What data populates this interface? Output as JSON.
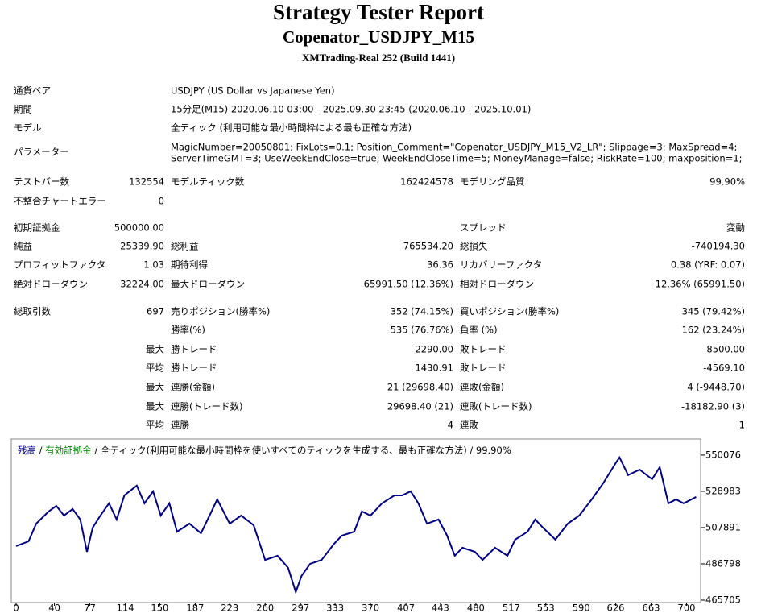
{
  "header": {
    "title": "Strategy Tester Report",
    "subtitle": "Copenator_USDJPY_M15",
    "build": "XMTrading-Real 252 (Build 1441)"
  },
  "info": [
    {
      "label": "通貨ペア",
      "value": [
        "USDJPY (US Dollar vs Japanese Yen)"
      ]
    },
    {
      "label": "期間",
      "value": [
        "15分足(M15) 2020.06.10 03:00 - 2025.09.30 23:45 (2020.06.10 - 2025.10.01)"
      ]
    },
    {
      "label": "モデル",
      "value": [
        "全ティック (利用可能な最小時間枠による最も正確な方法)"
      ]
    },
    {
      "label": "パラメーター",
      "value": [
        "MagicNumber=20050801; FixLots=0.1; Position_Comment=\"Copenator_USDJPY_M15_V2_LR\"; Slippage=3; MaxSpread=4;",
        "ServerTimeGMT=3; UseWeekEndClose=true; WeekEndCloseTime=5; MoneyManage=false; RiskRate=100; maxposition=1;"
      ]
    }
  ],
  "stats": [
    [
      "テストバー数",
      "132554",
      "モデルティック数",
      "162424578",
      "モデリング品質",
      "99.90%"
    ],
    [
      "不整合チャートエラー",
      "0",
      null,
      null,
      null,
      null
    ],
    [
      "初期証拠金",
      "500000.00",
      null,
      null,
      "スプレッド",
      "変動"
    ],
    [
      "純益",
      "25339.90",
      "総利益",
      "765534.20",
      "総損失",
      "-740194.30"
    ],
    [
      "プロフィットファクタ",
      "1.03",
      "期待利得",
      "36.36",
      "リカバリーファクタ",
      "0.38 (YRF: 0.07)"
    ],
    [
      "絶対ドローダウン",
      "32224.00",
      "最大ドローダウン",
      "65991.50 (12.36%)",
      "相対ドローダウン",
      "12.36% (65991.50)"
    ],
    [
      "総取引数",
      "697",
      "売りポジション(勝率%)",
      "352 (74.15%)",
      "買いポジション(勝率%)",
      "345 (79.42%)"
    ],
    [
      null,
      null,
      "勝率(%)",
      "535 (76.76%)",
      "負率 (%)",
      "162 (23.24%)"
    ],
    [
      null,
      "最大",
      "勝トレード",
      "2290.00",
      "敗トレード",
      "-8500.00"
    ],
    [
      null,
      "平均",
      "勝トレード",
      "1430.91",
      "敗トレード",
      "-4569.10"
    ],
    [
      null,
      "最大",
      "連勝(金額)",
      "21 (29698.40)",
      "連敗(金額)",
      "4 (-9448.70)"
    ],
    [
      null,
      "最大",
      "連勝(トレード数)",
      "29698.40 (21)",
      "連敗(トレード数)",
      "-18182.90 (3)"
    ],
    [
      null,
      "平均",
      "連勝",
      "4",
      "連敗",
      "1"
    ]
  ],
  "chart_data": {
    "type": "line",
    "legend_separator": "/",
    "legend_note": "全ティック(利用可能な最小時間枠を使いすべてのティックを生成する、最も正確な方法)",
    "legend_quality": "99.90%",
    "x": [
      0,
      13,
      21,
      34,
      42,
      50,
      59,
      67,
      74,
      80,
      88,
      97,
      105,
      113,
      126,
      134,
      143,
      151,
      160,
      168,
      181,
      193,
      202,
      210,
      223,
      235,
      248,
      260,
      273,
      284,
      292,
      298,
      307,
      319,
      332,
      340,
      353,
      361,
      370,
      382,
      395,
      403,
      412,
      420,
      429,
      441,
      450,
      458,
      466,
      479,
      487,
      500,
      513,
      521,
      534,
      542,
      550,
      563,
      576,
      588,
      601,
      613,
      626,
      630,
      639,
      651,
      664,
      672,
      681,
      689,
      697,
      710
    ],
    "series": [
      {
        "name": "残高",
        "color": "#000080",
        "values": [
          497100,
          499900,
          510200,
          517300,
          520500,
          514900,
          518700,
          512600,
          493800,
          507900,
          514900,
          522000,
          512600,
          526600,
          532300,
          522000,
          529000,
          514900,
          522000,
          505500,
          510200,
          504600,
          514900,
          524300,
          510200,
          514900,
          509300,
          489100,
          491500,
          484500,
          470400,
          479800,
          486800,
          489100,
          498500,
          503200,
          505500,
          517300,
          514900,
          522000,
          526600,
          526600,
          529000,
          522000,
          510200,
          512600,
          503200,
          491500,
          496200,
          493800,
          489100,
          496200,
          491500,
          500900,
          505500,
          512600,
          507900,
          500900,
          510200,
          514900,
          524300,
          533700,
          545400,
          548700,
          538400,
          541600,
          536000,
          543000,
          522000,
          524300,
          522000,
          525700
        ]
      },
      {
        "name": "有効証拠金",
        "color": "#008000"
      }
    ],
    "xlim": [
      0,
      713
    ],
    "ylim": [
      465705,
      558000
    ],
    "xticks": [
      0,
      40,
      77,
      114,
      150,
      187,
      223,
      260,
      297,
      333,
      370,
      407,
      443,
      480,
      517,
      553,
      590,
      626,
      663,
      700
    ],
    "yticks": [
      550076,
      528983,
      507891,
      486798,
      465705
    ]
  }
}
